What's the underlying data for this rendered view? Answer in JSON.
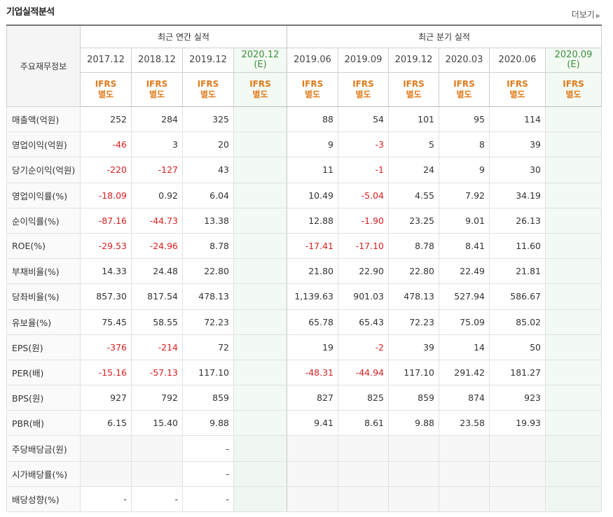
{
  "section_title": "기업실적분석",
  "more_label": "더보기",
  "row_header": "주요재무정보",
  "annual_group": "최근 연간 실적",
  "quarter_group": "최근 분기 실적",
  "periods": [
    {
      "line1": "2017.12",
      "line2": "",
      "est": false
    },
    {
      "line1": "2018.12",
      "line2": "",
      "est": false
    },
    {
      "line1": "2019.12",
      "line2": "",
      "est": false
    },
    {
      "line1": "2020.12",
      "line2": "(E)",
      "est": true
    },
    {
      "line1": "2019.06",
      "line2": "",
      "est": false
    },
    {
      "line1": "2019.09",
      "line2": "",
      "est": false
    },
    {
      "line1": "2019.12",
      "line2": "",
      "est": false
    },
    {
      "line1": "2020.03",
      "line2": "",
      "est": false
    },
    {
      "line1": "2020.06",
      "line2": "",
      "est": false
    },
    {
      "line1": "2020.09",
      "line2": "(E)",
      "est": true
    }
  ],
  "ifrs": {
    "line1": "IFRS",
    "line2": "별도"
  },
  "rows": [
    {
      "label": "매출액(억원)",
      "values": [
        "252",
        "284",
        "325",
        "",
        "88",
        "54",
        "101",
        "95",
        "114",
        ""
      ]
    },
    {
      "label": "영업이익(억원)",
      "values": [
        "-46",
        "3",
        "20",
        "",
        "9",
        "-3",
        "5",
        "8",
        "39",
        ""
      ]
    },
    {
      "label": "당기순이익(억원)",
      "values": [
        "-220",
        "-127",
        "43",
        "",
        "11",
        "-1",
        "24",
        "9",
        "30",
        ""
      ]
    },
    {
      "label": "영업이익률(%)",
      "values": [
        "-18.09",
        "0.92",
        "6.04",
        "",
        "10.49",
        "-5.04",
        "4.55",
        "7.92",
        "34.19",
        ""
      ]
    },
    {
      "label": "순이익률(%)",
      "values": [
        "-87.16",
        "-44.73",
        "13.38",
        "",
        "12.88",
        "-1.90",
        "23.25",
        "9.01",
        "26.13",
        ""
      ]
    },
    {
      "label": "ROE(%)",
      "values": [
        "-29.53",
        "-24.96",
        "8.78",
        "",
        "-17.41",
        "-17.10",
        "8.78",
        "8.41",
        "11.60",
        ""
      ]
    },
    {
      "label": "부채비율(%)",
      "values": [
        "14.33",
        "24.48",
        "22.80",
        "",
        "21.80",
        "22.90",
        "22.80",
        "22.49",
        "21.81",
        ""
      ]
    },
    {
      "label": "당좌비율(%)",
      "values": [
        "857.30",
        "817.54",
        "478.13",
        "",
        "1,139.63",
        "901.03",
        "478.13",
        "527.94",
        "586.67",
        ""
      ]
    },
    {
      "label": "유보율(%)",
      "values": [
        "75.45",
        "58.55",
        "72.23",
        "",
        "65.78",
        "65.43",
        "72.23",
        "75.09",
        "85.02",
        ""
      ]
    },
    {
      "label": "EPS(원)",
      "values": [
        "-376",
        "-214",
        "72",
        "",
        "19",
        "-2",
        "39",
        "14",
        "50",
        ""
      ]
    },
    {
      "label": "PER(배)",
      "values": [
        "-15.16",
        "-57.13",
        "117.10",
        "",
        "-48.31",
        "-44.94",
        "117.10",
        "291.42",
        "181.27",
        ""
      ]
    },
    {
      "label": "BPS(원)",
      "values": [
        "927",
        "792",
        "859",
        "",
        "827",
        "825",
        "859",
        "874",
        "923",
        ""
      ]
    },
    {
      "label": "PBR(배)",
      "values": [
        "6.15",
        "15.40",
        "9.88",
        "",
        "9.41",
        "8.61",
        "9.88",
        "23.58",
        "19.93",
        ""
      ]
    },
    {
      "label": "주당배당금(원)",
      "values": [
        "",
        "",
        "-",
        "",
        "",
        "",
        "",
        "",
        "",
        ""
      ]
    },
    {
      "label": "시가배당률(%)",
      "values": [
        "",
        "",
        "-",
        "",
        "",
        "",
        "",
        "",
        "",
        ""
      ]
    },
    {
      "label": "배당성향(%)",
      "values": [
        "-",
        "-",
        "-",
        "",
        "",
        "",
        "",
        "",
        "",
        ""
      ]
    }
  ],
  "colors": {
    "negative": "#d62020",
    "ifrs": "#e07b1a",
    "estimate_text": "#3d8f3d",
    "estimate_bg": "#f3f9f3"
  }
}
